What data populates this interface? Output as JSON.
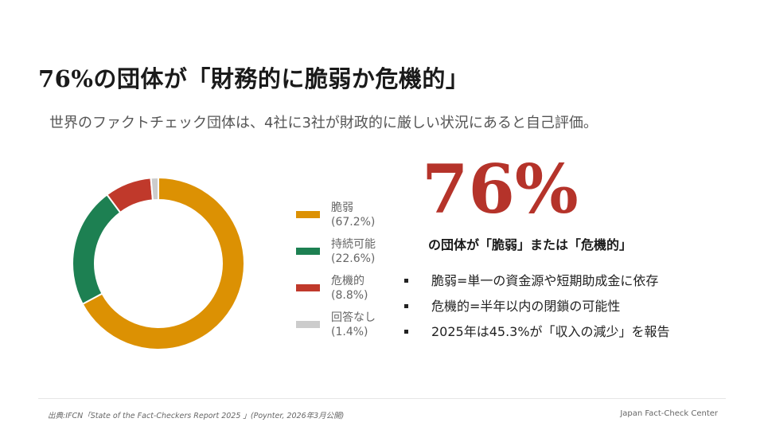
{
  "slide": {
    "title": "76%の団体が「財務的に脆弱か危機的」",
    "subtitle": "世界のファクトチェック団体は、4社に3社が財政的に厳しい状況にあると自己評価。"
  },
  "chart_data": {
    "type": "pie",
    "donut": true,
    "categories": [
      "脆弱",
      "持続可能",
      "危機的",
      "回答なし"
    ],
    "values": [
      67.2,
      22.6,
      8.8,
      1.4
    ],
    "value_labels": [
      "(67.2%)",
      "(22.6%)",
      "(8.8%)",
      "(1.4%)"
    ],
    "colors": [
      "#dc9103",
      "#1d8052",
      "#c0392b",
      "#cccccc"
    ],
    "legend_position": "right"
  },
  "highlight": {
    "number": "76%",
    "caption": "の団体が「脆弱」または「危機的」"
  },
  "bullets": [
    "脆弱=単一の資金源や短期助成金に依存",
    "危機的=半年以内の閉鎖の可能性",
    "2025年は45.3%が「収入の減少」を報告"
  ],
  "footer": {
    "source": "出典:IFCN「State of the Fact-Checkers Report 2025 」(Poynter, 2026年3月公開)",
    "brand": "Japan Fact-Check Center"
  }
}
